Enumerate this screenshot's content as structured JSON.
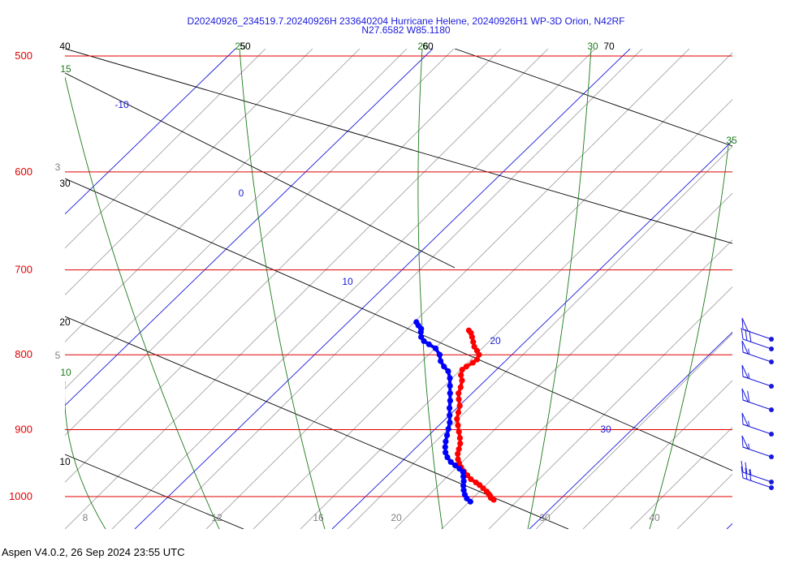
{
  "header": {
    "title_line1": "D20240926_234519.7.20240926H 233640204 Hurricane Helene, 20240926H1 WP-3D Orion, N42RF",
    "title_line2": "N27.6582 W85.1180"
  },
  "footer": {
    "text": "Aspen V4.0.2, 26 Sep 2024  23:55 UTC"
  },
  "chart_data": {
    "type": "line",
    "chart_kind": "skew-T log-P diagram",
    "y_axis": {
      "scale": "log",
      "range": [
        1000,
        500
      ],
      "ticks": [
        "500",
        "600",
        "700",
        "800",
        "900",
        "1000"
      ]
    },
    "x_axis": {
      "ticks": [
        "8",
        "12",
        "16",
        "20",
        "30",
        "40"
      ]
    },
    "isotherm_labels": [
      "-10",
      "0",
      "10",
      "20",
      "30"
    ],
    "mixing_ratio_labels_left": [
      "3",
      "5"
    ],
    "green_line_labels": [
      "15",
      "10",
      "25",
      "26",
      "30",
      "35"
    ],
    "black_line_labels": [
      "40",
      "30",
      "20",
      "10",
      "50",
      "60",
      "70"
    ],
    "series": [
      {
        "color": "#ff0000",
        "points": [
          [
            25.5,
            1005
          ],
          [
            25.1,
            1002
          ],
          [
            25.0,
            999
          ],
          [
            24.8,
            996
          ],
          [
            24.5,
            992
          ],
          [
            24.0,
            987
          ],
          [
            23.5,
            982
          ],
          [
            23.0,
            978
          ],
          [
            22.3,
            973
          ],
          [
            21.8,
            967
          ],
          [
            21.3,
            961
          ],
          [
            20.9,
            955
          ],
          [
            20.6,
            949
          ],
          [
            20.4,
            943
          ],
          [
            20.3,
            935
          ],
          [
            20.4,
            928
          ],
          [
            20.5,
            920
          ],
          [
            20.4,
            912
          ],
          [
            20.2,
            903
          ],
          [
            20.0,
            894
          ],
          [
            19.8,
            885
          ],
          [
            19.9,
            876
          ],
          [
            20.0,
            867
          ],
          [
            19.8,
            858
          ],
          [
            19.7,
            850
          ],
          [
            19.9,
            842
          ],
          [
            20.0,
            833
          ],
          [
            19.8,
            826
          ],
          [
            19.9,
            819
          ],
          [
            20.4,
            815
          ],
          [
            21.2,
            810
          ],
          [
            21.7,
            806
          ],
          [
            21.9,
            800
          ],
          [
            21.6,
            795
          ],
          [
            21.2,
            790
          ],
          [
            21.0,
            784
          ],
          [
            20.8,
            778
          ],
          [
            20.6,
            773
          ],
          [
            20.3,
            770
          ]
        ]
      },
      {
        "color": "#0000ff",
        "points": [
          [
            22.5,
            1008
          ],
          [
            22.0,
            1003
          ],
          [
            21.7,
            997
          ],
          [
            21.5,
            990
          ],
          [
            21.4,
            983
          ],
          [
            21.4,
            976
          ],
          [
            21.3,
            969
          ],
          [
            21.2,
            962
          ],
          [
            20.7,
            957
          ],
          [
            20.1,
            952
          ],
          [
            19.5,
            947
          ],
          [
            19.0,
            940
          ],
          [
            18.7,
            933
          ],
          [
            18.6,
            925
          ],
          [
            18.6,
            917
          ],
          [
            18.7,
            908
          ],
          [
            18.8,
            899
          ],
          [
            18.9,
            890
          ],
          [
            18.8,
            880
          ],
          [
            18.7,
            870
          ],
          [
            18.7,
            860
          ],
          [
            18.6,
            850
          ],
          [
            18.5,
            840
          ],
          [
            18.4,
            830
          ],
          [
            18.1,
            821
          ],
          [
            17.5,
            815
          ],
          [
            17.0,
            808
          ],
          [
            16.8,
            800
          ],
          [
            16.2,
            792
          ],
          [
            15.3,
            787
          ],
          [
            14.6,
            783
          ],
          [
            14.2,
            778
          ],
          [
            14.1,
            772
          ],
          [
            14.1,
            768
          ],
          [
            13.7,
            764
          ],
          [
            13.4,
            760
          ]
        ]
      }
    ],
    "wind_barbs": {
      "color": "#1a1adb",
      "levels": [
        {
          "pressure_hPa": 1000,
          "flags": 0,
          "barbs": 3.0
        },
        {
          "pressure_hPa": 995,
          "flags": 0,
          "barbs": 2.5
        },
        {
          "pressure_hPa": 950,
          "flags": 1,
          "barbs": 0.5
        },
        {
          "pressure_hPa": 910,
          "flags": 1,
          "barbs": 0.5
        },
        {
          "pressure_hPa": 870,
          "flags": 1,
          "barbs": 1.0
        },
        {
          "pressure_hPa": 845,
          "flags": 1,
          "barbs": 0.5
        },
        {
          "pressure_hPa": 820,
          "flags": 1,
          "barbs": 0.5
        },
        {
          "pressure_hPa": 800,
          "flags": 0,
          "barbs": 3.0
        },
        {
          "pressure_hPa": 780,
          "flags": 1,
          "barbs": 0.0
        }
      ]
    }
  }
}
